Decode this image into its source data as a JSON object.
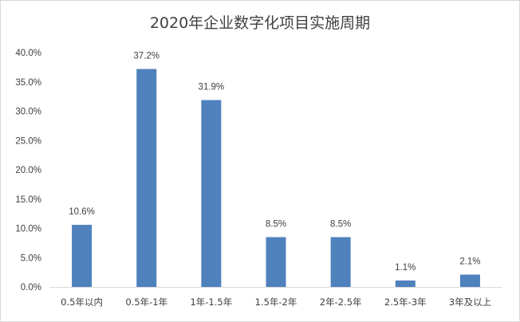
{
  "chart_data": {
    "type": "bar",
    "title": "2020年企业数字化项目实施周期",
    "categories": [
      "0.5年以内",
      "0.5年-1年",
      "1年-1.5年",
      "1.5年-2年",
      "2年-2.5年",
      "2.5年-3年",
      "3年及以上"
    ],
    "values": [
      10.6,
      37.2,
      31.9,
      8.5,
      8.5,
      1.1,
      2.1
    ],
    "data_labels": [
      "10.6%",
      "37.2%",
      "31.9%",
      "8.5%",
      "8.5%",
      "1.1%",
      "2.1%"
    ],
    "yticks": [
      "0.0%",
      "5.0%",
      "10.0%",
      "15.0%",
      "20.0%",
      "25.0%",
      "30.0%",
      "35.0%",
      "40.0%"
    ],
    "ylim": [
      0,
      40
    ],
    "xlabel": "",
    "ylabel": "",
    "grid": false,
    "legend": "none",
    "bar_color": "#4F81BD"
  }
}
